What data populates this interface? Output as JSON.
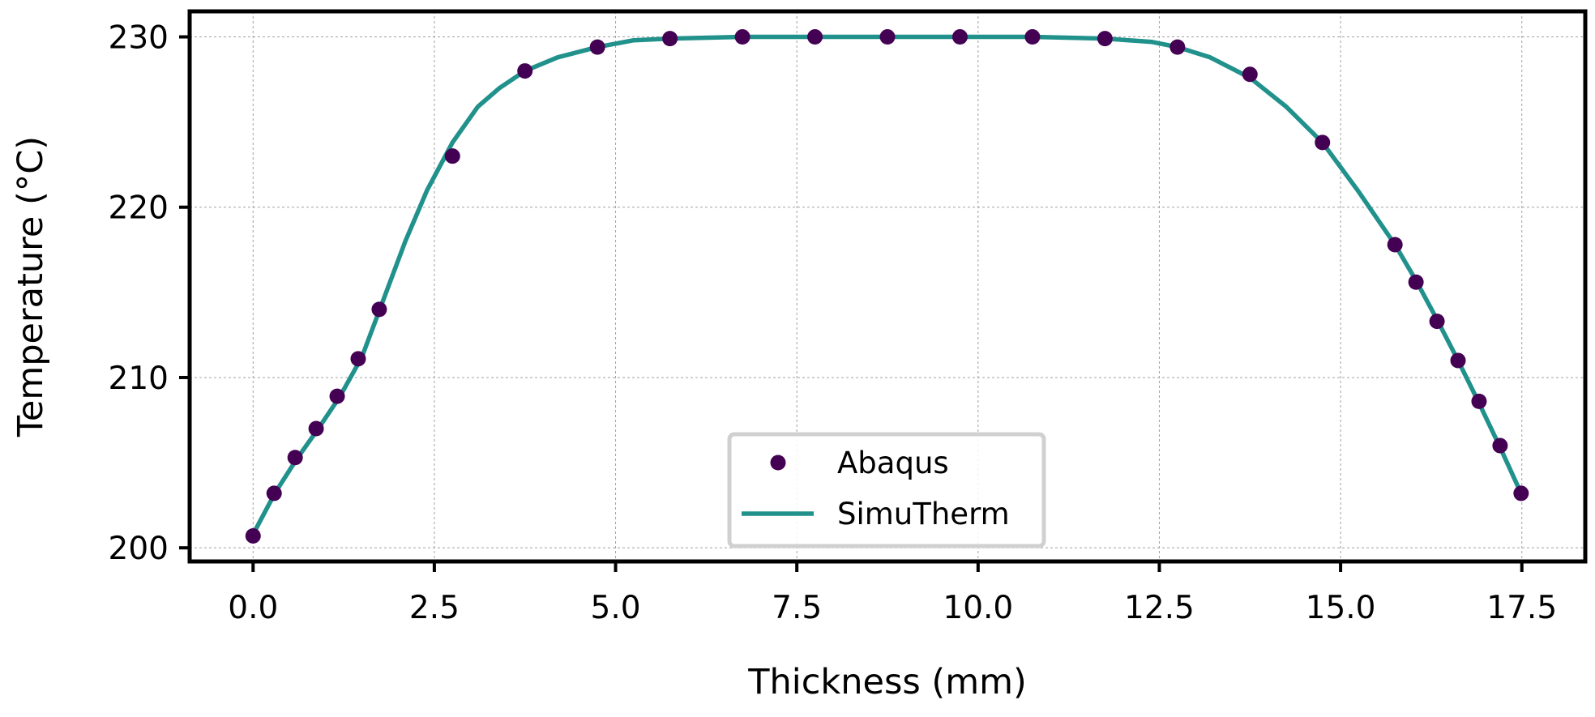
{
  "chart_data": {
    "type": "line",
    "title": "",
    "xlabel": "Thickness (mm)",
    "ylabel": "Temperature (°C)",
    "xlim": [
      -0.875,
      18.375
    ],
    "ylim": [
      199.2,
      231.5
    ],
    "xticks": [
      0.0,
      2.5,
      5.0,
      7.5,
      10.0,
      12.5,
      15.0,
      17.5
    ],
    "xtick_labels": [
      "0.0",
      "2.5",
      "5.0",
      "7.5",
      "10.0",
      "12.5",
      "15.0",
      "17.5"
    ],
    "yticks": [
      200,
      210,
      220,
      230
    ],
    "ytick_labels": [
      "200",
      "210",
      "220",
      "230"
    ],
    "grid": true,
    "legend_position": "bottom-center",
    "series": [
      {
        "name": "Abaqus",
        "kind": "scatter",
        "color": "#440154",
        "x": [
          0.0,
          0.29,
          0.58,
          0.87,
          1.16,
          1.45,
          1.74,
          2.75,
          3.75,
          4.75,
          5.75,
          6.75,
          7.75,
          8.75,
          9.75,
          10.75,
          11.75,
          12.75,
          13.75,
          14.75,
          15.75,
          16.04,
          16.33,
          16.62,
          16.91,
          17.2,
          17.49
        ],
        "y": [
          200.7,
          203.2,
          205.3,
          207.0,
          208.9,
          211.1,
          214.0,
          223.0,
          228.0,
          229.4,
          229.9,
          230.0,
          230.0,
          230.0,
          230.0,
          230.0,
          229.9,
          229.4,
          227.8,
          223.8,
          217.8,
          215.6,
          213.3,
          211.0,
          208.6,
          206.0,
          203.2
        ]
      },
      {
        "name": "SimuTherm",
        "kind": "line",
        "color": "#21918c",
        "x": [
          0.0,
          0.3,
          0.6,
          0.9,
          1.2,
          1.5,
          1.8,
          2.1,
          2.4,
          2.75,
          3.1,
          3.4,
          3.75,
          4.2,
          4.75,
          5.25,
          5.75,
          6.75,
          7.75,
          8.75,
          9.75,
          10.75,
          11.75,
          12.4,
          12.75,
          13.2,
          13.75,
          14.25,
          14.75,
          15.25,
          15.75,
          16.04,
          16.33,
          16.62,
          16.91,
          17.2,
          17.49
        ],
        "y": [
          200.8,
          203.2,
          205.2,
          207.0,
          208.9,
          211.2,
          214.6,
          218.0,
          221.0,
          223.8,
          225.9,
          227.0,
          228.0,
          228.8,
          229.4,
          229.8,
          229.9,
          230.0,
          230.0,
          230.0,
          230.0,
          230.0,
          229.9,
          229.7,
          229.4,
          228.8,
          227.6,
          225.9,
          223.8,
          220.9,
          217.8,
          215.7,
          213.4,
          211.0,
          208.5,
          205.9,
          203.2
        ]
      }
    ]
  }
}
